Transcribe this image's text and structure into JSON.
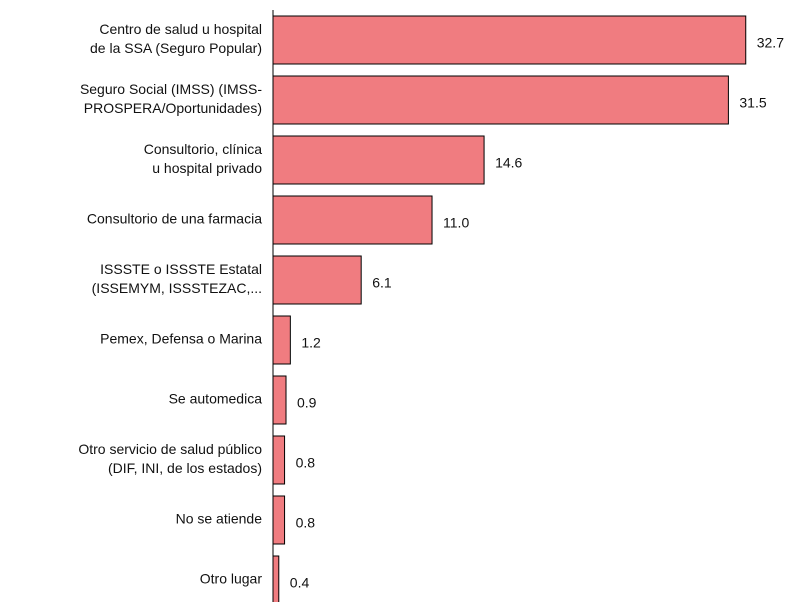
{
  "chart_data": {
    "type": "bar",
    "orientation": "horizontal",
    "categories": [
      [
        "Centro de salud u hospital",
        "de la SSA (Seguro Popular)"
      ],
      [
        "Seguro Social (IMSS) (IMSS-",
        "PROSPERA/Oportunidades)"
      ],
      [
        "Consultorio, clínica",
        "u hospital privado"
      ],
      [
        "Consultorio de una farmacia"
      ],
      [
        "ISSSTE o ISSSTE Estatal",
        "(ISSEMYM, ISSSTEZAC,..."
      ],
      [
        "Pemex, Defensa o Marina"
      ],
      [
        "Se automedica"
      ],
      [
        "Otro servicio de salud público",
        "(DIF, INI, de los estados)"
      ],
      [
        "No se atiende"
      ],
      [
        "Otro lugar"
      ]
    ],
    "values": [
      32.7,
      31.5,
      14.6,
      11.0,
      6.1,
      1.2,
      0.9,
      0.8,
      0.8,
      0.4
    ],
    "value_labels": [
      "32.7",
      "31.5",
      "14.6",
      "11.0",
      "6.1",
      "1.2",
      "0.9",
      "0.8",
      "0.8",
      "0.4"
    ],
    "color": "#f07c80",
    "xlim": [
      0,
      35
    ]
  }
}
